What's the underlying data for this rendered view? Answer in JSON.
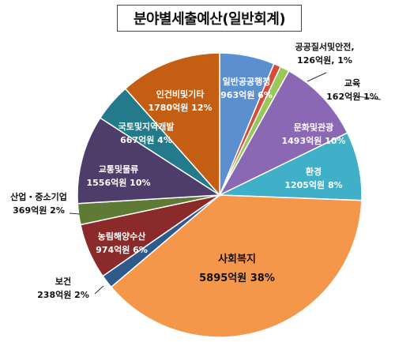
{
  "chart_data": {
    "type": "pie",
    "title": "분야별세출예산(일반회계)",
    "unit": "억원",
    "slices": [
      {
        "name": "일반공공행정",
        "value": 963,
        "value_label": "963억원",
        "pct_label": "6%",
        "color": "#5b8fd0"
      },
      {
        "name": "공공질서및안전,",
        "value": 126,
        "value_label": "126억원,",
        "pct_label": "1%",
        "color": "#d64a3a"
      },
      {
        "name": "교육",
        "value": 162,
        "value_label": "162억원",
        "pct_label": "1%",
        "color": "#9bc65a"
      },
      {
        "name": "문화및관광",
        "value": 1493,
        "value_label": "1493억원",
        "pct_label": "10%",
        "color": "#8b68b4"
      },
      {
        "name": "환경",
        "value": 1205,
        "value_label": "1205억원",
        "pct_label": "8%",
        "color": "#3fb0c8"
      },
      {
        "name": "사회복지",
        "value": 5895,
        "value_label": "5895억원",
        "pct_label": "38%",
        "color": "#f5974b"
      },
      {
        "name": "보건",
        "value": 238,
        "value_label": "238억원",
        "pct_label": "2%",
        "color": "#2f5b8c"
      },
      {
        "name": "농림해양수산",
        "value": 974,
        "value_label": "974억원",
        "pct_label": "6%",
        "color": "#8b2a2a"
      },
      {
        "name": "산업・중소기업",
        "value": 369,
        "value_label": "369억원",
        "pct_label": "2%",
        "color": "#5f7a34"
      },
      {
        "name": "교통및물류",
        "value": 1556,
        "value_label": "1556억원",
        "pct_label": "10%",
        "color": "#4e3d6b"
      },
      {
        "name": "국토및지역개발",
        "value": 667,
        "value_label": "667억원",
        "pct_label": "4%",
        "color": "#227a8a"
      },
      {
        "name": "인건비및기타",
        "value": 1780,
        "value_label": "1780억원",
        "pct_label": "12%",
        "color": "#c45e12"
      }
    ]
  }
}
